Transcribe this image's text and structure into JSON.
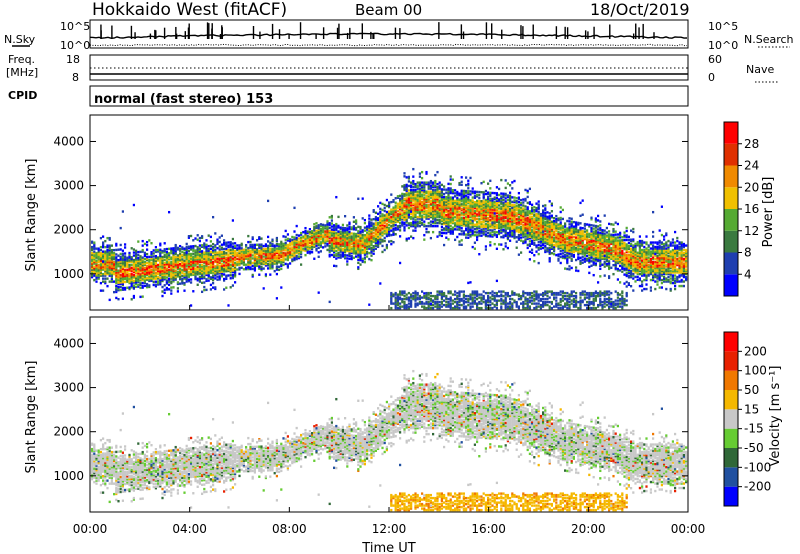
{
  "header": {
    "station": "Hokkaido West (fitACF)",
    "beam": "Beam 00",
    "date": "18/Oct/2019"
  },
  "status_panels": {
    "nsky_label": "N.Sky",
    "nsearch_label": "N.Search",
    "noise_tick_top": "10^5",
    "noise_tick_bottom": "10^0",
    "freq_label": "Freq.",
    "freq_unit": "[MHz]",
    "freq_tick_top": "18",
    "freq_tick_bottom": "8",
    "nave_label": "Nave",
    "nave_tick_top": "60",
    "nave_tick_bottom": "0",
    "cpid_label": "CPID",
    "cpid_text": "normal (fast stereo) 153"
  },
  "chart_data": [
    {
      "type": "heatmap",
      "quantity": "Power",
      "ylabel": "Slant Range [km]",
      "yticks": [
        "4000",
        "3000",
        "2000",
        "1000"
      ],
      "ylim": [
        180,
        4600
      ],
      "xlim_hours": [
        0,
        24
      ],
      "colorbar": {
        "label": "Power [dB]",
        "ticks": [
          "28",
          "24",
          "20",
          "16",
          "12",
          "8",
          "4"
        ],
        "colors": [
          "#0000ff",
          "#1f3fb0",
          "#3a7a40",
          "#55aa33",
          "#f0c000",
          "#f08a00",
          "#e03000",
          "#ff0000"
        ]
      }
    },
    {
      "type": "heatmap",
      "quantity": "Velocity",
      "ylabel": "Slant Range [km]",
      "yticks": [
        "4000",
        "3000",
        "2000",
        "1000"
      ],
      "ylim": [
        180,
        4600
      ],
      "xlim_hours": [
        0,
        24
      ],
      "xlabel": "Time UT",
      "xticks": [
        "00:00",
        "04:00",
        "08:00",
        "12:00",
        "16:00",
        "20:00",
        "00:00"
      ],
      "colorbar": {
        "label": "Velocity [m s⁻¹]",
        "ticks": [
          "200",
          "100",
          "50",
          "15",
          "-15",
          "-50",
          "-100",
          "-200"
        ],
        "colors": [
          "#0000ff",
          "#2050a0",
          "#306838",
          "#66cc33",
          "#c8c8c8",
          "#f5b800",
          "#f07800",
          "#e82000",
          "#ff0000"
        ]
      }
    }
  ]
}
